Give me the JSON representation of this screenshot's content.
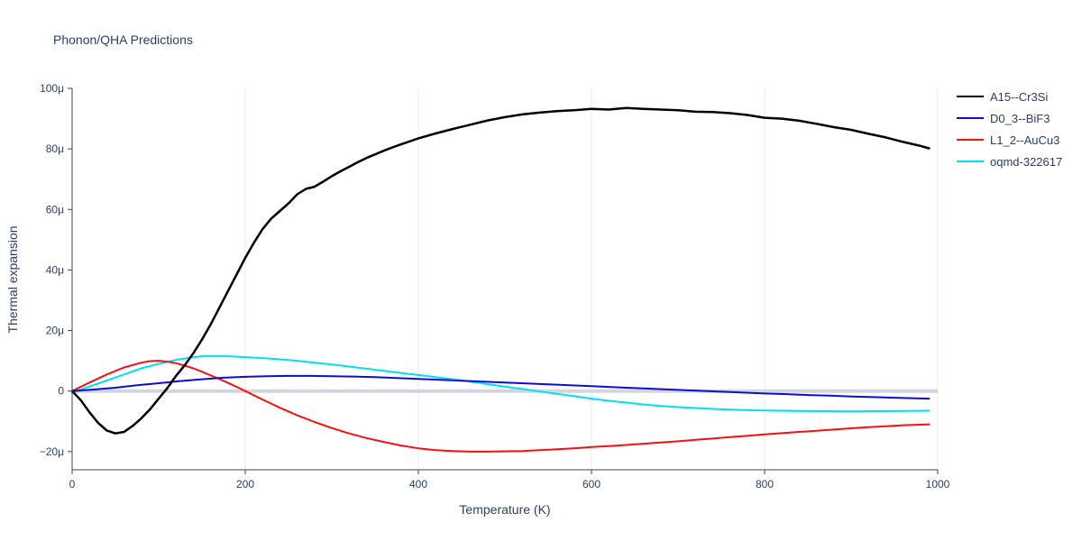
{
  "chart_data": {
    "type": "line",
    "title": "Phonon/QHA Predictions",
    "xlabel": "Temperature (K)",
    "ylabel": "Thermal expansion",
    "xlim": [
      0,
      1000
    ],
    "ylim": [
      -26,
      100
    ],
    "grid": "vertical-light",
    "zeroline": true,
    "legend_position": "right",
    "x_tick_values": [
      0,
      200,
      400,
      600,
      800,
      1000
    ],
    "x_tick_labels": [
      "0",
      "200",
      "400",
      "600",
      "800",
      "1000"
    ],
    "y_tick_values": [
      -20,
      0,
      20,
      40,
      60,
      80,
      100
    ],
    "y_tick_labels": [
      "−20μ",
      "0",
      "20μ",
      "40μ",
      "60μ",
      "80μ",
      "100μ"
    ],
    "series": [
      {
        "name": "A15--Cr3Si",
        "color": "#000000",
        "width": 2.5,
        "points": [
          [
            0,
            0
          ],
          [
            10,
            -3
          ],
          [
            20,
            -7
          ],
          [
            30,
            -10.5
          ],
          [
            40,
            -13
          ],
          [
            50,
            -14
          ],
          [
            60,
            -13.5
          ],
          [
            70,
            -11.5
          ],
          [
            80,
            -9
          ],
          [
            90,
            -6
          ],
          [
            100,
            -2.5
          ],
          [
            110,
            1
          ],
          [
            120,
            5
          ],
          [
            130,
            8.5
          ],
          [
            140,
            12.5
          ],
          [
            150,
            17
          ],
          [
            160,
            22
          ],
          [
            170,
            27.5
          ],
          [
            180,
            33
          ],
          [
            190,
            38.5
          ],
          [
            200,
            44
          ],
          [
            210,
            49
          ],
          [
            220,
            53.5
          ],
          [
            230,
            57
          ],
          [
            240,
            59.5
          ],
          [
            250,
            62
          ],
          [
            260,
            65
          ],
          [
            270,
            66.8
          ],
          [
            280,
            67.5
          ],
          [
            290,
            69.2
          ],
          [
            300,
            71
          ],
          [
            310,
            72.6
          ],
          [
            320,
            74.1
          ],
          [
            330,
            75.6
          ],
          [
            340,
            77
          ],
          [
            350,
            78.2
          ],
          [
            360,
            79.4
          ],
          [
            370,
            80.5
          ],
          [
            380,
            81.5
          ],
          [
            390,
            82.5
          ],
          [
            400,
            83.5
          ],
          [
            420,
            85.1
          ],
          [
            440,
            86.6
          ],
          [
            460,
            88
          ],
          [
            480,
            89.4
          ],
          [
            500,
            90.5
          ],
          [
            520,
            91.4
          ],
          [
            540,
            92
          ],
          [
            560,
            92.5
          ],
          [
            580,
            92.8
          ],
          [
            600,
            93.2
          ],
          [
            620,
            93
          ],
          [
            640,
            93.5
          ],
          [
            660,
            93.2
          ],
          [
            680,
            93
          ],
          [
            700,
            92.8
          ],
          [
            720,
            92.3
          ],
          [
            740,
            92.2
          ],
          [
            760,
            91.8
          ],
          [
            780,
            91.2
          ],
          [
            800,
            90.3
          ],
          [
            820,
            90
          ],
          [
            840,
            89.3
          ],
          [
            860,
            88.3
          ],
          [
            880,
            87.2
          ],
          [
            900,
            86.3
          ],
          [
            920,
            85
          ],
          [
            940,
            83.8
          ],
          [
            960,
            82.3
          ],
          [
            980,
            81
          ],
          [
            990,
            80.2
          ]
        ]
      },
      {
        "name": "D0_3--BiF3",
        "color": "#0d0dd6",
        "width": 2,
        "points": [
          [
            0,
            0
          ],
          [
            25,
            0.5
          ],
          [
            50,
            1.1
          ],
          [
            75,
            1.9
          ],
          [
            100,
            2.6
          ],
          [
            125,
            3.3
          ],
          [
            150,
            3.9
          ],
          [
            175,
            4.4
          ],
          [
            200,
            4.7
          ],
          [
            225,
            4.9
          ],
          [
            250,
            5
          ],
          [
            275,
            5
          ],
          [
            300,
            4.9
          ],
          [
            325,
            4.8
          ],
          [
            350,
            4.6
          ],
          [
            375,
            4.3
          ],
          [
            400,
            4
          ],
          [
            425,
            3.7
          ],
          [
            450,
            3.4
          ],
          [
            475,
            3.1
          ],
          [
            500,
            2.8
          ],
          [
            525,
            2.5
          ],
          [
            550,
            2.2
          ],
          [
            575,
            1.9
          ],
          [
            600,
            1.6
          ],
          [
            625,
            1.3
          ],
          [
            650,
            1
          ],
          [
            675,
            0.7
          ],
          [
            700,
            0.4
          ],
          [
            725,
            0.1
          ],
          [
            750,
            -0.2
          ],
          [
            775,
            -0.5
          ],
          [
            800,
            -0.8
          ],
          [
            825,
            -1
          ],
          [
            850,
            -1.3
          ],
          [
            875,
            -1.5
          ],
          [
            900,
            -1.8
          ],
          [
            925,
            -2
          ],
          [
            950,
            -2.2
          ],
          [
            975,
            -2.4
          ],
          [
            990,
            -2.5
          ]
        ]
      },
      {
        "name": "L1_2--AuCu3",
        "color": "#f80f0f",
        "width": 2,
        "points": [
          [
            0,
            0
          ],
          [
            20,
            2.8
          ],
          [
            40,
            5.5
          ],
          [
            60,
            7.8
          ],
          [
            80,
            9.4
          ],
          [
            90,
            9.9
          ],
          [
            100,
            10
          ],
          [
            110,
            9.7
          ],
          [
            120,
            9.2
          ],
          [
            130,
            8.4
          ],
          [
            140,
            7.5
          ],
          [
            150,
            6.4
          ],
          [
            160,
            5.2
          ],
          [
            170,
            4
          ],
          [
            180,
            2.7
          ],
          [
            190,
            1.4
          ],
          [
            200,
            0
          ],
          [
            220,
            -2.8
          ],
          [
            240,
            -5.5
          ],
          [
            260,
            -8
          ],
          [
            280,
            -10.2
          ],
          [
            300,
            -12.2
          ],
          [
            320,
            -14
          ],
          [
            340,
            -15.5
          ],
          [
            360,
            -16.8
          ],
          [
            380,
            -18
          ],
          [
            400,
            -18.9
          ],
          [
            420,
            -19.5
          ],
          [
            440,
            -19.8
          ],
          [
            460,
            -20
          ],
          [
            480,
            -20
          ],
          [
            500,
            -19.9
          ],
          [
            520,
            -19.8
          ],
          [
            540,
            -19.5
          ],
          [
            560,
            -19.2
          ],
          [
            580,
            -18.9
          ],
          [
            600,
            -18.5
          ],
          [
            620,
            -18.2
          ],
          [
            640,
            -17.8
          ],
          [
            660,
            -17.4
          ],
          [
            680,
            -17
          ],
          [
            700,
            -16.6
          ],
          [
            720,
            -16.1
          ],
          [
            740,
            -15.7
          ],
          [
            760,
            -15.2
          ],
          [
            780,
            -14.8
          ],
          [
            800,
            -14.3
          ],
          [
            820,
            -13.9
          ],
          [
            840,
            -13.5
          ],
          [
            860,
            -13.1
          ],
          [
            880,
            -12.7
          ],
          [
            900,
            -12.3
          ],
          [
            920,
            -11.9
          ],
          [
            940,
            -11.6
          ],
          [
            960,
            -11.3
          ],
          [
            980,
            -11.1
          ],
          [
            990,
            -11
          ]
        ]
      },
      {
        "name": "oqmd-322617",
        "color": "#00e0ef",
        "width": 2,
        "points": [
          [
            0,
            -0.5
          ],
          [
            20,
            1.5
          ],
          [
            40,
            3.5
          ],
          [
            60,
            5.5
          ],
          [
            80,
            7.5
          ],
          [
            100,
            9
          ],
          [
            120,
            10.3
          ],
          [
            140,
            11.2
          ],
          [
            150,
            11.5
          ],
          [
            160,
            11.6
          ],
          [
            180,
            11.5
          ],
          [
            200,
            11.2
          ],
          [
            220,
            10.9
          ],
          [
            240,
            10.5
          ],
          [
            260,
            10
          ],
          [
            280,
            9.4
          ],
          [
            300,
            8.8
          ],
          [
            320,
            8.1
          ],
          [
            340,
            7.4
          ],
          [
            360,
            6.7
          ],
          [
            380,
            6
          ],
          [
            400,
            5.3
          ],
          [
            420,
            4.6
          ],
          [
            440,
            3.9
          ],
          [
            460,
            3.1
          ],
          [
            480,
            2.3
          ],
          [
            500,
            1.5
          ],
          [
            520,
            0.7
          ],
          [
            540,
            -0.1
          ],
          [
            560,
            -0.9
          ],
          [
            580,
            -1.7
          ],
          [
            600,
            -2.5
          ],
          [
            620,
            -3.2
          ],
          [
            640,
            -3.8
          ],
          [
            660,
            -4.4
          ],
          [
            680,
            -4.9
          ],
          [
            700,
            -5.3
          ],
          [
            720,
            -5.6
          ],
          [
            740,
            -5.9
          ],
          [
            760,
            -6.1
          ],
          [
            780,
            -6.3
          ],
          [
            800,
            -6.4
          ],
          [
            850,
            -6.6
          ],
          [
            900,
            -6.7
          ],
          [
            950,
            -6.6
          ],
          [
            990,
            -6.5
          ]
        ]
      }
    ]
  }
}
